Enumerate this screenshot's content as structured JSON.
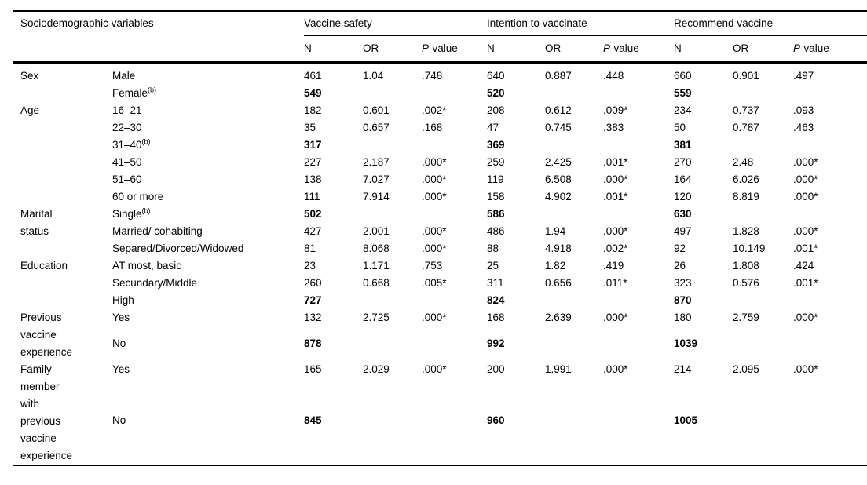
{
  "table": {
    "header": {
      "col1": "Sociodemographic variables",
      "groups": [
        "Vaccine safety",
        "Intention to vaccinate",
        "Recommend vaccine"
      ],
      "sub": {
        "n": "N",
        "or": "OR",
        "p_italic": "P",
        "p_rest": "-value"
      }
    },
    "row_groups": [
      {
        "variable": "Sex",
        "rows": [
          {
            "category": "Male",
            "sup": "",
            "ref": false,
            "cells": [
              "461",
              "1.04",
              ".748",
              "640",
              "0.887",
              ".448",
              "660",
              "0.901",
              ".497"
            ]
          },
          {
            "category": "Female",
            "sup": "(b)",
            "ref": true,
            "cells": [
              "549",
              "",
              "",
              "520",
              "",
              "",
              "559",
              "",
              ""
            ]
          }
        ]
      },
      {
        "variable": "Age",
        "rows": [
          {
            "category": "16–21",
            "sup": "",
            "ref": false,
            "cells": [
              "182",
              "0.601",
              ".002*",
              "208",
              "0.612",
              ".009*",
              "234",
              "0.737",
              ".093"
            ]
          },
          {
            "category": "22–30",
            "sup": "",
            "ref": false,
            "cells": [
              "35",
              "0.657",
              ".168",
              "47",
              "0.745",
              ".383",
              "50",
              "0.787",
              ".463"
            ]
          },
          {
            "category": "31–40",
            "sup": "(b)",
            "ref": true,
            "cells": [
              "317",
              "",
              "",
              "369",
              "",
              "",
              "381",
              "",
              ""
            ]
          },
          {
            "category": "41–50",
            "sup": "",
            "ref": false,
            "cells": [
              "227",
              "2.187",
              ".000*",
              "259",
              "2.425",
              ".001*",
              "270",
              "2.48",
              ".000*"
            ]
          },
          {
            "category": "51–60",
            "sup": "",
            "ref": false,
            "cells": [
              "138",
              "7.027",
              ".000*",
              "119",
              "6.508",
              ".000*",
              "164",
              "6.026",
              ".000*"
            ]
          },
          {
            "category": "60 or more",
            "sup": "",
            "ref": false,
            "cells": [
              "111",
              "7.914",
              ".000*",
              "158",
              "4.902",
              ".001*",
              "120",
              "8.819",
              ".000*"
            ]
          }
        ]
      },
      {
        "variable": "Marital status",
        "rows": [
          {
            "category": "Single",
            "sup": "(b)",
            "ref": true,
            "cells": [
              "502",
              "",
              "",
              "586",
              "",
              "",
              "630",
              "",
              ""
            ]
          },
          {
            "category": "Married/ cohabiting",
            "sup": "",
            "ref": false,
            "cells": [
              "427",
              "2.001",
              ".000*",
              "486",
              "1.94",
              ".000*",
              "497",
              "1.828",
              ".000*"
            ]
          },
          {
            "category": "Separed/Divorced/Widowed",
            "sup": "",
            "ref": false,
            "cells": [
              "81",
              "8.068",
              ".000*",
              "88",
              "4.918",
              ".002*",
              "92",
              "10.149",
              ".001*"
            ]
          }
        ]
      },
      {
        "variable": "Education",
        "rows": [
          {
            "category": "AT most, basic",
            "sup": "",
            "ref": false,
            "cells": [
              "23",
              "1.171",
              ".753",
              "25",
              "1.82",
              ".419",
              "26",
              "1.808",
              ".424"
            ]
          },
          {
            "category": "Secundary/Middle",
            "sup": "",
            "ref": false,
            "cells": [
              "260",
              "0.668",
              ".005*",
              "311",
              "0.656",
              ".011*",
              "323",
              "0.576",
              ".001*"
            ]
          },
          {
            "category": "High",
            "sup": "",
            "ref": true,
            "cells": [
              "727",
              "",
              "",
              "824",
              "",
              "",
              "870",
              "",
              ""
            ]
          }
        ]
      },
      {
        "variable": "Previous vaccine experience",
        "rows": [
          {
            "category": "Yes",
            "sup": "",
            "ref": false,
            "cells": [
              "132",
              "2.725",
              ".000*",
              "168",
              "2.639",
              ".000*",
              "180",
              "2.759",
              ".000*"
            ]
          },
          {
            "category": "No",
            "sup": "",
            "ref": true,
            "cells": [
              "878",
              "",
              "",
              "992",
              "",
              "",
              "1039",
              "",
              ""
            ]
          }
        ]
      },
      {
        "variable": "Family member with previous vaccine experience",
        "rows": [
          {
            "category": "Yes",
            "sup": "",
            "ref": false,
            "cells": [
              "165",
              "2.029",
              ".000*",
              "200",
              "1.991",
              ".000*",
              "214",
              "2.095",
              ".000*"
            ]
          },
          {
            "category": "No",
            "sup": "",
            "ref": true,
            "cells": [
              "845",
              "",
              "",
              "960",
              "",
              "",
              "1005",
              "",
              ""
            ]
          }
        ]
      }
    ]
  }
}
